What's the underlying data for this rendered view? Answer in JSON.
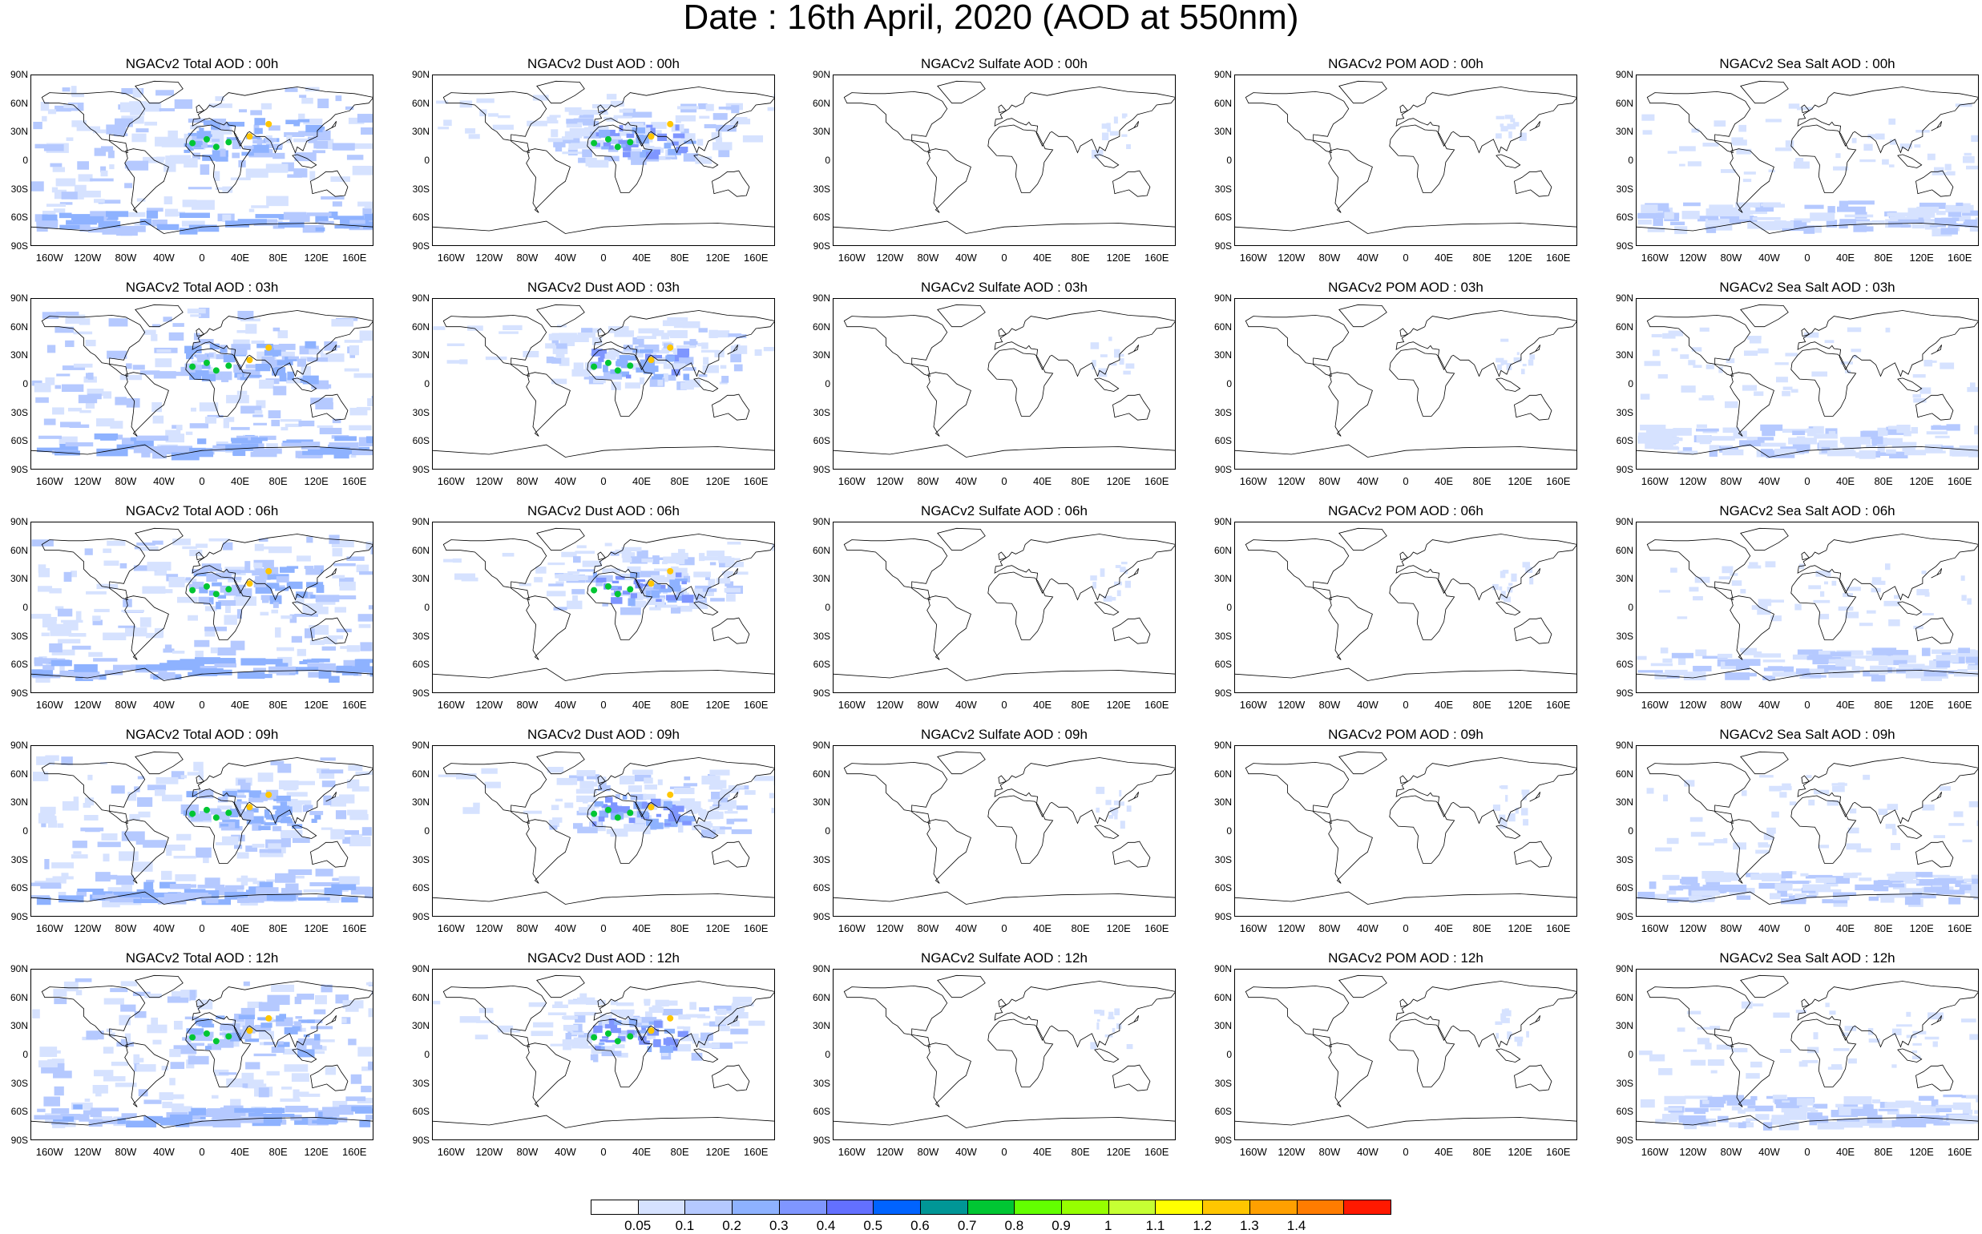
{
  "title": "Date : 16th April, 2020 (AOD at 550nm)",
  "columns": [
    {
      "species": "Total",
      "fill": "wide"
    },
    {
      "species": "Dust",
      "fill": "dust"
    },
    {
      "species": "Sulfate",
      "fill": "sparse"
    },
    {
      "species": "POM",
      "fill": "sparse"
    },
    {
      "species": "Sea Salt",
      "fill": "seasalt"
    }
  ],
  "rows": [
    "00h",
    "03h",
    "06h",
    "09h",
    "12h"
  ],
  "panel_titles": [
    [
      "NGACv2 Total AOD : 00h",
      "NGACv2 Dust AOD : 00h",
      "NGACv2 Sulfate AOD : 00h",
      "NGACv2 POM AOD : 00h",
      "NGACv2 Sea Salt AOD : 00h"
    ],
    [
      "NGACv2 Total AOD : 03h",
      "NGACv2 Dust AOD : 03h",
      "NGACv2 Sulfate AOD : 03h",
      "NGACv2 POM AOD : 03h",
      "NGACv2 Sea Salt AOD : 03h"
    ],
    [
      "NGACv2 Total AOD : 06h",
      "NGACv2 Dust AOD : 06h",
      "NGACv2 Sulfate AOD : 06h",
      "NGACv2 POM AOD : 06h",
      "NGACv2 Sea Salt AOD : 06h"
    ],
    [
      "NGACv2 Total AOD : 09h",
      "NGACv2 Dust AOD : 09h",
      "NGACv2 Sulfate AOD : 09h",
      "NGACv2 POM AOD : 09h",
      "NGACv2 Sea Salt  AOD : 09h"
    ],
    [
      "NGACv2 Total AOD  : 12h",
      "NGACv2 Dust AOD : 12h",
      "NGACv2 Sulfate AOD : 12h",
      "NGACv2 POM  AOD : 12h",
      "NGACv2 Sea Salt  AOD : 12h"
    ]
  ],
  "lat_ticks": [
    "90N",
    "60N",
    "30N",
    "0",
    "30S",
    "60S",
    "90S"
  ],
  "lon_ticks": [
    "160W",
    "120W",
    "80W",
    "40W",
    "0",
    "40E",
    "80E",
    "120E",
    "160E"
  ],
  "colorbar": {
    "labels": [
      "0.05",
      "0.1",
      "0.2",
      "0.3",
      "0.4",
      "0.5",
      "0.6",
      "0.7",
      "0.8",
      "0.9",
      "1",
      "1.1",
      "1.2",
      "1.3",
      "1.4"
    ],
    "colors": [
      "#ffffff",
      "#d6e2ff",
      "#b5c9ff",
      "#8eb2ff",
      "#7f96ff",
      "#6370ff",
      "#0063ff",
      "#009696",
      "#00c633",
      "#63ff00",
      "#96ff00",
      "#c6ff33",
      "#ffff00",
      "#ffc600",
      "#ffa000",
      "#ff7c00",
      "#ff1900"
    ]
  },
  "colors": {
    "low": "#d6e2ff",
    "mid": "#b5c9ff",
    "high": "#8eb2ff",
    "dust_core": "#00c633",
    "dust_peak": "#ffc600",
    "coast": "#000000"
  }
}
